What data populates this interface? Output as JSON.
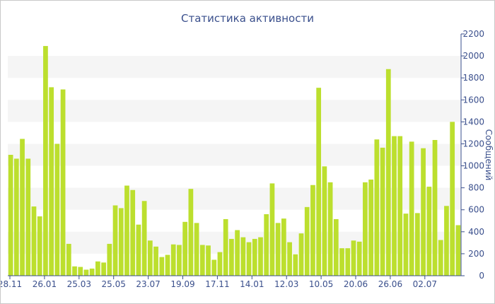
{
  "chart_data": {
    "type": "bar",
    "title": "Статистика активности",
    "xlabel": "",
    "ylabel": "Сообщений",
    "ylim": [
      0,
      2200
    ],
    "y_ticks": [
      0,
      200,
      400,
      600,
      800,
      1000,
      1200,
      1400,
      1600,
      1800,
      2000,
      2200
    ],
    "x_tick_labels": [
      "28.11",
      "26.01",
      "25.03",
      "25.05",
      "23.07",
      "19.09",
      "17.11",
      "14.01",
      "12.03",
      "10.05",
      "20.06",
      "26.06",
      "02.07"
    ],
    "grid": "horizontal-bands",
    "y_axis_side": "right",
    "bar_color": "#bcdf2e",
    "series": [
      {
        "values": [
          1100,
          1065,
          1245,
          1065,
          630,
          540,
          2090,
          1715,
          1200,
          1695,
          290,
          85,
          80,
          55,
          65,
          130,
          120,
          290,
          640,
          615,
          820,
          780,
          465,
          680,
          320,
          265,
          170,
          190,
          285,
          280,
          490,
          790,
          480,
          280,
          275,
          145,
          215,
          515,
          335,
          415,
          350,
          305,
          335,
          350,
          560,
          840,
          480,
          520,
          305,
          195,
          385,
          625,
          825,
          1710,
          995,
          850,
          515,
          250,
          250,
          320,
          310,
          850,
          875,
          1240,
          1165,
          1880,
          1270,
          1270,
          565,
          1220,
          570,
          1160,
          810,
          1235,
          325,
          635,
          1400,
          460
        ]
      }
    ]
  }
}
